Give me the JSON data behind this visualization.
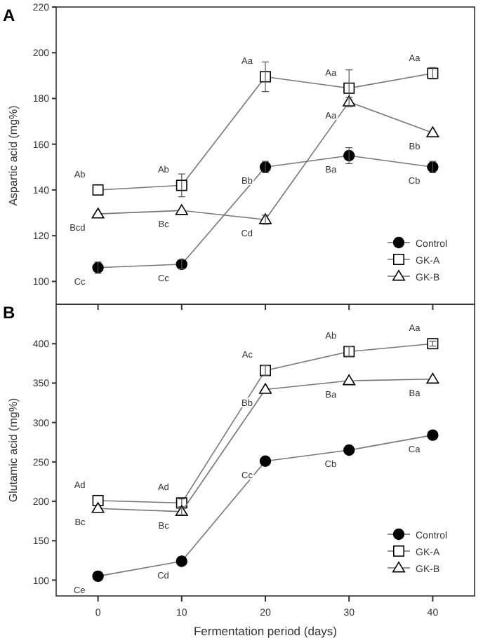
{
  "chart_data": [
    {
      "type": "line",
      "title": "A",
      "ylabel": "Aspartic acid (mg%)",
      "x": [
        0,
        10,
        20,
        30,
        40
      ],
      "xlim": [
        -5,
        45
      ],
      "xticks": [
        0,
        10,
        20,
        30,
        40
      ],
      "ylim": [
        90,
        220
      ],
      "yticks": [
        100,
        120,
        140,
        160,
        180,
        200,
        220
      ],
      "tick_labels": "y",
      "legend": "bottom right",
      "series": [
        {
          "name": "Control",
          "color": "#000000",
          "marker": "circle",
          "values": [
            106,
            107.5,
            150,
            155,
            150
          ],
          "errors": [
            2.5,
            2,
            2.5,
            3.5,
            2.5
          ],
          "value_labels": [
            "Cc",
            "Cc",
            "Bb",
            "Ba",
            "Cb"
          ]
        },
        {
          "name": "GK-A",
          "color": "#000000",
          "marker": "square",
          "values": [
            140,
            142,
            189.5,
            184.5,
            191
          ],
          "errors": [
            null,
            5,
            6.5,
            8,
            2.5
          ],
          "value_labels": [
            "Ab",
            "Ab",
            "Aa",
            "Aa",
            "Aa"
          ]
        },
        {
          "name": "GK-B",
          "color": "#000000",
          "marker": "triangle",
          "values": [
            129.5,
            131,
            127,
            178.5,
            165
          ],
          "errors": [
            null,
            null,
            2,
            2,
            null
          ],
          "value_labels": [
            "Bcd",
            "Bc",
            "Cd",
            "Aa",
            "Bb"
          ]
        }
      ]
    },
    {
      "type": "line",
      "title": "B",
      "xlabel": "Fermentation period (days)",
      "ylabel": "Glutamic acid (mg%)",
      "x": [
        0,
        10,
        20,
        30,
        40
      ],
      "xlim": [
        -5,
        45
      ],
      "xticks": [
        0,
        10,
        20,
        30,
        40
      ],
      "ylim": [
        80,
        450
      ],
      "yticks": [
        100,
        150,
        200,
        250,
        300,
        350,
        400
      ],
      "legend": "bottom right",
      "series": [
        {
          "name": "Control",
          "color": "#000000",
          "marker": "circle",
          "values": [
            105,
            124,
            251,
            265,
            284
          ],
          "errors": [
            null,
            null,
            null,
            null,
            null
          ],
          "value_labels": [
            "Ce",
            "Cd",
            "Cc",
            "Cb",
            "Ca"
          ]
        },
        {
          "name": "GK-A",
          "color": "#000000",
          "marker": "square",
          "values": [
            201,
            198,
            366,
            390,
            400
          ],
          "errors": [
            null,
            5,
            6,
            6,
            3
          ],
          "value_labels": [
            "Ad",
            "Ad",
            "Ac",
            "Ab",
            "Aa"
          ]
        },
        {
          "name": "GK-B",
          "color": "#000000",
          "marker": "triangle",
          "values": [
            191,
            187,
            342,
            353,
            355
          ],
          "errors": [
            null,
            4,
            null,
            null,
            null
          ],
          "value_labels": [
            "Bc",
            "Bc",
            "Bb",
            "Ba",
            "Ba"
          ]
        }
      ]
    }
  ]
}
